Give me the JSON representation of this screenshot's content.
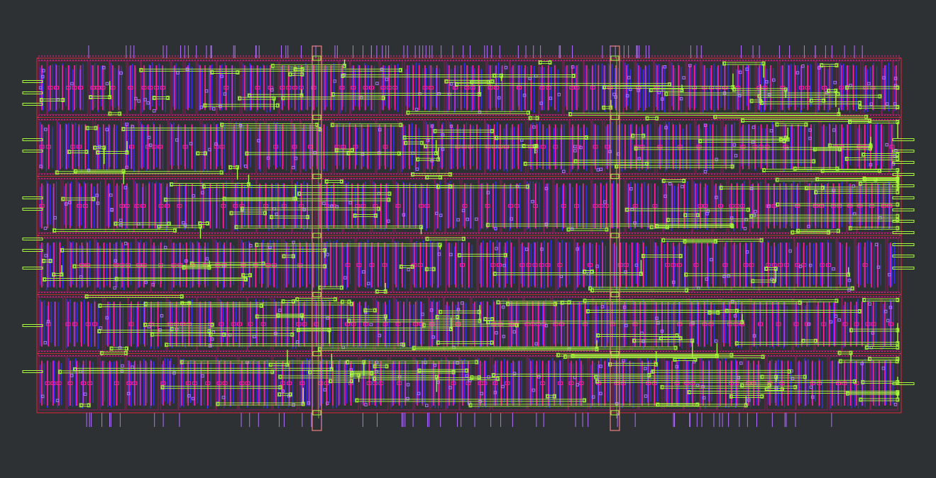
{
  "viewer": {
    "background_color": "#2e3133",
    "layers": [
      {
        "id": "diffusion",
        "color": "#8a1a5a"
      },
      {
        "id": "poly",
        "color": "#ff1fa0"
      },
      {
        "id": "metal1",
        "color": "#3a2cff"
      },
      {
        "id": "via",
        "color": "#b070ff"
      },
      {
        "id": "metal2",
        "color": "#a8ff3a"
      },
      {
        "id": "boundary",
        "color": "#e0263a"
      },
      {
        "id": "power_strap",
        "color": "#f08080"
      }
    ],
    "rows": 6,
    "power_straps": 2
  }
}
